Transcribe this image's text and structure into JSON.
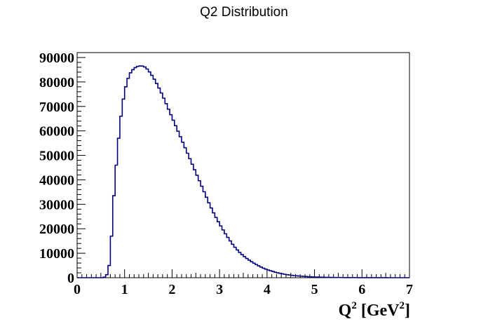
{
  "chart_data": {
    "type": "histogram",
    "title": "Q2 Distribution",
    "xlabel": {
      "base": "Q",
      "sup": "2",
      "mid": " [GeV",
      "sup2": "2",
      "end": "]"
    },
    "ylabel": "",
    "xlim": [
      0,
      7
    ],
    "ylim": [
      0,
      92000
    ],
    "x_ticks": [
      0,
      1,
      2,
      3,
      4,
      5,
      6,
      7
    ],
    "y_ticks": [
      0,
      10000,
      20000,
      30000,
      40000,
      50000,
      60000,
      70000,
      80000,
      90000
    ],
    "grid": false,
    "line_color": "#000080",
    "bin_width": 0.05,
    "curve_points": [
      [
        0.0,
        0
      ],
      [
        0.55,
        0
      ],
      [
        0.6,
        500
      ],
      [
        0.65,
        2000
      ],
      [
        0.7,
        8000
      ],
      [
        0.72,
        15000
      ],
      [
        0.75,
        27000
      ],
      [
        0.8,
        40000
      ],
      [
        0.85,
        52000
      ],
      [
        0.9,
        62000
      ],
      [
        0.95,
        70000
      ],
      [
        1.0,
        76000
      ],
      [
        1.05,
        80000
      ],
      [
        1.1,
        83000
      ],
      [
        1.15,
        84500
      ],
      [
        1.2,
        85500
      ],
      [
        1.25,
        86200
      ],
      [
        1.3,
        86500
      ],
      [
        1.35,
        86600
      ],
      [
        1.4,
        86400
      ],
      [
        1.45,
        85800
      ],
      [
        1.5,
        84800
      ],
      [
        1.6,
        82000
      ],
      [
        1.7,
        78500
      ],
      [
        1.8,
        74500
      ],
      [
        1.9,
        70000
      ],
      [
        2.0,
        65500
      ],
      [
        2.1,
        61000
      ],
      [
        2.2,
        56500
      ],
      [
        2.3,
        52000
      ],
      [
        2.4,
        47500
      ],
      [
        2.5,
        43000
      ],
      [
        2.6,
        38500
      ],
      [
        2.7,
        34000
      ],
      [
        2.8,
        29500
      ],
      [
        2.9,
        25500
      ],
      [
        3.0,
        22000
      ],
      [
        3.1,
        18700
      ],
      [
        3.2,
        15700
      ],
      [
        3.3,
        13000
      ],
      [
        3.4,
        10800
      ],
      [
        3.5,
        9000
      ],
      [
        3.6,
        7500
      ],
      [
        3.7,
        6200
      ],
      [
        3.8,
        5100
      ],
      [
        3.9,
        4100
      ],
      [
        4.0,
        3300
      ],
      [
        4.2,
        2100
      ],
      [
        4.4,
        1300
      ],
      [
        4.6,
        800
      ],
      [
        4.8,
        500
      ],
      [
        5.0,
        300
      ],
      [
        5.2,
        180
      ],
      [
        5.5,
        80
      ],
      [
        6.0,
        20
      ],
      [
        6.5,
        5
      ],
      [
        7.0,
        0
      ]
    ]
  }
}
